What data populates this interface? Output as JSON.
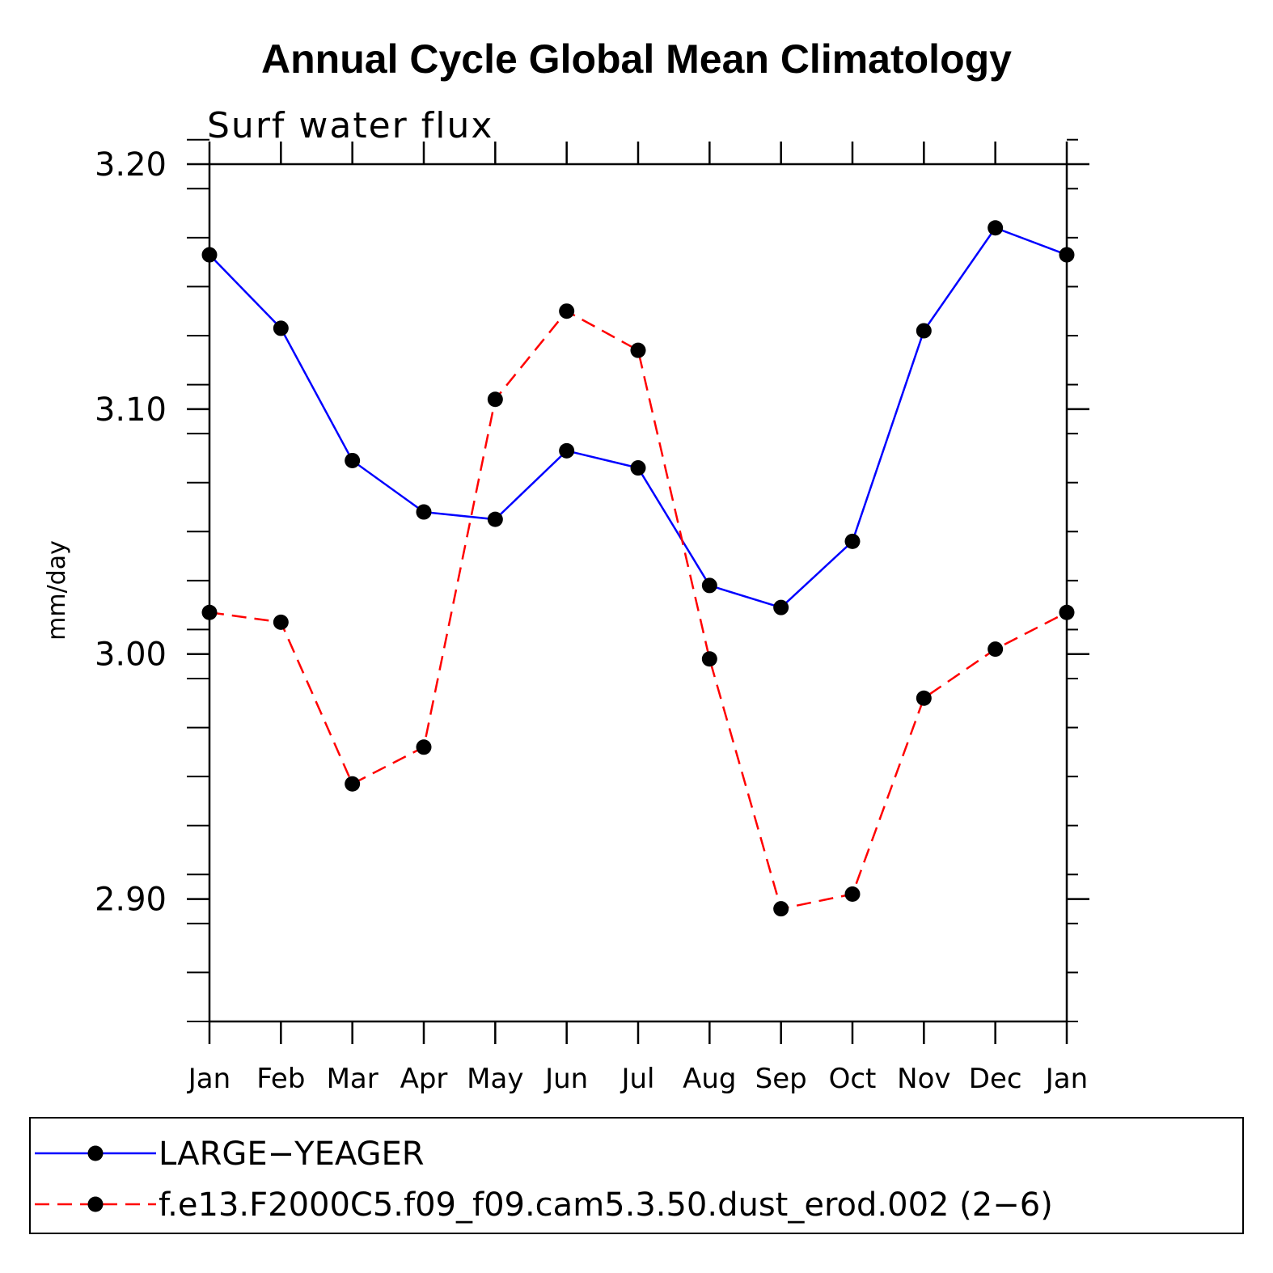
{
  "chart_data": {
    "type": "line",
    "title": "Annual Cycle Global Mean Climatology",
    "subtitle": "Surf water flux",
    "xlabel": "",
    "ylabel": "mm/day",
    "categories": [
      "Jan",
      "Feb",
      "Mar",
      "Apr",
      "May",
      "Jun",
      "Jul",
      "Aug",
      "Sep",
      "Oct",
      "Nov",
      "Dec",
      "Jan"
    ],
    "ylim": [
      2.85,
      3.2
    ],
    "yticks": [
      {
        "value": 2.9,
        "label": "2.90"
      },
      {
        "value": 3.0,
        "label": "3.00"
      },
      {
        "value": 3.1,
        "label": "3.10"
      },
      {
        "value": 3.2,
        "label": "3.20"
      }
    ],
    "yminor_step": 0.02,
    "grid": false,
    "legend_position": "bottom",
    "series": [
      {
        "name": "LARGE−YEAGER",
        "color": "#0000ff",
        "dash": "solid",
        "marker": "circle",
        "values": [
          3.163,
          3.133,
          3.079,
          3.058,
          3.055,
          3.083,
          3.076,
          3.028,
          3.019,
          3.046,
          3.132,
          3.174,
          3.163
        ]
      },
      {
        "name": "f.e13.F2000C5.f09_f09.cam5.3.50.dust_erod.002 (2−6)",
        "color": "#ff0000",
        "dash": "dashed",
        "marker": "circle",
        "values": [
          3.017,
          3.013,
          2.947,
          2.962,
          3.104,
          3.14,
          3.124,
          2.998,
          2.896,
          2.902,
          2.982,
          3.002,
          3.017
        ]
      }
    ]
  }
}
